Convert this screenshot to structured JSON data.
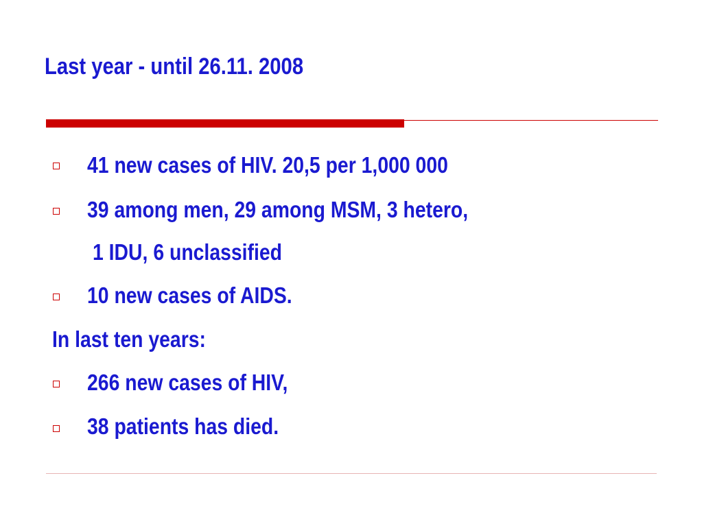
{
  "slide": {
    "title": "Last year - until 26.11. 2008",
    "lines": [
      {
        "bullet": true,
        "text": "41 new cases of HIV. 20,5 per 1,000 000"
      },
      {
        "bullet": true,
        "text": "39 among men, 29 among MSM, 3 hetero,"
      },
      {
        "bullet": false,
        "text": "1 IDU, 6 unclassified"
      },
      {
        "bullet": true,
        "text": "10 new cases of AIDS."
      },
      {
        "bullet": false,
        "text": "In last ten years:"
      },
      {
        "bullet": true,
        "text": "266 new cases of HIV,"
      },
      {
        "bullet": true,
        "text": "38 patients has died."
      }
    ],
    "colors": {
      "text": "#1a1ad0",
      "accent": "#cc0000",
      "bullet_border": "#cc0000",
      "background": "#ffffff"
    },
    "bullet_icon": "hollow-square-icon"
  }
}
